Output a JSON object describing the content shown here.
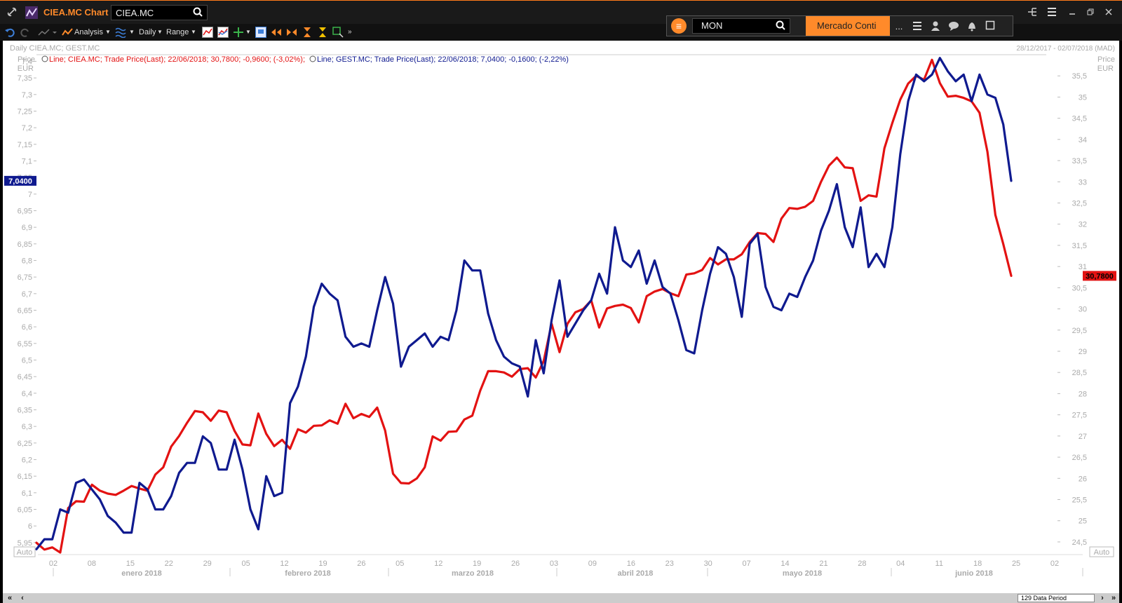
{
  "window": {
    "app_title": "CIEA.MC Chart",
    "ric_value": "CIEA.MC",
    "controls": [
      "link-icon",
      "grid-icon",
      "menu-icon",
      "minimize-icon",
      "restore-icon",
      "close-icon"
    ]
  },
  "toolbar": {
    "analysis_label": "Analysis",
    "interval_label": "Daily",
    "range_label": "Range"
  },
  "search": {
    "value": "MON",
    "market_label": "Mercado Conti",
    "more_label": "..."
  },
  "chart_header": {
    "title_left": "Daily CIEA.MC; GEST.MC",
    "range_right": "28/12/2017 - 02/07/2018 (MAD)",
    "legend_red": "Line; CIEA.MC; Trade Price(Last);  22/06/2018; 30,7800; -0,9600; (-3,02%);",
    "legend_blue": "Line; GEST.MC; Trade Price(Last);  22/06/2018; 7,0400; -0,1600; (-2,22%)",
    "left_axis_title": "Price",
    "left_axis_unit": "EUR",
    "right_axis_title": "Price",
    "right_axis_unit": "EUR",
    "auto_left": "Auto",
    "auto_right": "Auto",
    "blue_last_label": "7,0400",
    "red_last_label": "30,7800"
  },
  "footer": {
    "period_label": "129 Data Period"
  },
  "colors": {
    "orange": "#ff8a2a",
    "red_series": "#e31212",
    "blue_series": "#0f1a8f"
  },
  "chart_data": {
    "type": "line",
    "title": "Daily CIEA.MC; GEST.MC",
    "left_axis": {
      "ylim": [
        5.92,
        7.42
      ],
      "ticks": [
        "5,95",
        "6",
        "6,05",
        "6,1",
        "6,15",
        "6,2",
        "6,25",
        "6,3",
        "6,35",
        "6,4",
        "6,45",
        "6,5",
        "6,55",
        "6,6",
        "6,65",
        "6,7",
        "6,75",
        "6,8",
        "6,85",
        "6,9",
        "6,95",
        "7",
        "7,05",
        "7,1",
        "7,15",
        "7,2",
        "7,25",
        "7,3",
        "7,35",
        "7,4"
      ]
    },
    "right_axis": {
      "ylim": [
        24.25,
        36.0
      ],
      "ticks": [
        "24,5",
        "25",
        "25,5",
        "26",
        "26,5",
        "27",
        "27,5",
        "28",
        "28,5",
        "29",
        "29,5",
        "30",
        "30,5",
        "31",
        "31,5",
        "32",
        "32,5",
        "33",
        "33,5",
        "34",
        "34,5",
        "35",
        "35,5"
      ]
    },
    "x_day_ticks": [
      "02",
      "08",
      "15",
      "22",
      "29",
      "05",
      "12",
      "19",
      "26",
      "05",
      "12",
      "19",
      "26",
      "03",
      "09",
      "16",
      "23",
      "30",
      "07",
      "14",
      "21",
      "28",
      "04",
      "11",
      "18",
      "25",
      "02"
    ],
    "x_month_labels": [
      "enero 2018",
      "febrero 2018",
      "marzo 2018",
      "abril 2018",
      "mayo 2018",
      "junio 2018"
    ],
    "series": [
      {
        "name": "GEST.MC",
        "axis": "left",
        "values": [
          5.93,
          5.96,
          5.96,
          6.05,
          6.04,
          6.13,
          6.14,
          6.11,
          6.08,
          6.03,
          6.01,
          5.98,
          5.98,
          6.13,
          6.11,
          6.05,
          6.05,
          6.09,
          6.16,
          6.19,
          6.19,
          6.27,
          6.25,
          6.17,
          6.17,
          6.26,
          6.17,
          6.05,
          5.99,
          6.15,
          6.09,
          6.1,
          6.37,
          6.42,
          6.51,
          6.66,
          6.73,
          6.7,
          6.68,
          6.57,
          6.54,
          6.55,
          6.54,
          6.65,
          6.75,
          6.67,
          6.48,
          6.54,
          6.56,
          6.58,
          6.54,
          6.57,
          6.56,
          6.65,
          6.8,
          6.77,
          6.77,
          6.64,
          6.56,
          6.51,
          6.49,
          6.48,
          6.39,
          6.56,
          6.46,
          6.62,
          6.74,
          6.57,
          6.61,
          6.65,
          6.68,
          6.76,
          6.7,
          6.9,
          6.8,
          6.78,
          6.83,
          6.73,
          6.8,
          6.72,
          6.7,
          6.62,
          6.53,
          6.52,
          6.65,
          6.76,
          6.84,
          6.82,
          6.75,
          6.63,
          6.85,
          6.88,
          6.72,
          6.66,
          6.65,
          6.7,
          6.69,
          6.75,
          6.8,
          6.89,
          6.95,
          7.03,
          6.9,
          6.84,
          6.96,
          6.78,
          6.82,
          6.78,
          6.9,
          7.12,
          7.28,
          7.36,
          7.34,
          7.36,
          7.41,
          7.37,
          7.34,
          7.36,
          7.28,
          7.36,
          7.3,
          7.29,
          7.21,
          7.04
        ]
      },
      {
        "name": "CIEA.MC",
        "axis": "right",
        "values": [
          24.48,
          24.32,
          24.37,
          24.25,
          25.3,
          25.46,
          25.45,
          25.85,
          25.71,
          25.64,
          25.61,
          25.71,
          25.82,
          25.76,
          25.71,
          26.09,
          26.26,
          26.75,
          27.0,
          27.31,
          27.59,
          27.56,
          27.36,
          27.6,
          27.56,
          27.12,
          26.8,
          26.78,
          27.53,
          27.05,
          26.76,
          26.91,
          26.7,
          27.16,
          27.08,
          27.24,
          27.25,
          27.37,
          27.29,
          27.76,
          27.42,
          27.52,
          27.45,
          27.67,
          27.13,
          26.11,
          25.89,
          25.88,
          26.0,
          26.26,
          26.99,
          26.89,
          27.1,
          27.11,
          27.39,
          27.48,
          28.07,
          28.53,
          28.53,
          28.5,
          28.4,
          28.58,
          28.6,
          28.38,
          28.77,
          29.65,
          28.98,
          29.65,
          29.92,
          30.0,
          30.2,
          29.56,
          30.01,
          30.07,
          30.1,
          30.02,
          29.68,
          30.3,
          30.41,
          30.47,
          30.37,
          30.3,
          30.81,
          30.84,
          30.92,
          31.2,
          31.05,
          31.17,
          31.17,
          31.29,
          31.58,
          31.79,
          31.77,
          31.58,
          32.13,
          32.38,
          32.36,
          32.41,
          32.55,
          33.0,
          33.38,
          33.57,
          33.34,
          33.32,
          32.55,
          32.68,
          32.65,
          33.79,
          34.39,
          34.94,
          35.32,
          35.5,
          35.41,
          35.88,
          35.33,
          35.01,
          35.03,
          34.98,
          34.9,
          34.63,
          33.71,
          32.22,
          31.53,
          30.78
        ]
      }
    ]
  }
}
